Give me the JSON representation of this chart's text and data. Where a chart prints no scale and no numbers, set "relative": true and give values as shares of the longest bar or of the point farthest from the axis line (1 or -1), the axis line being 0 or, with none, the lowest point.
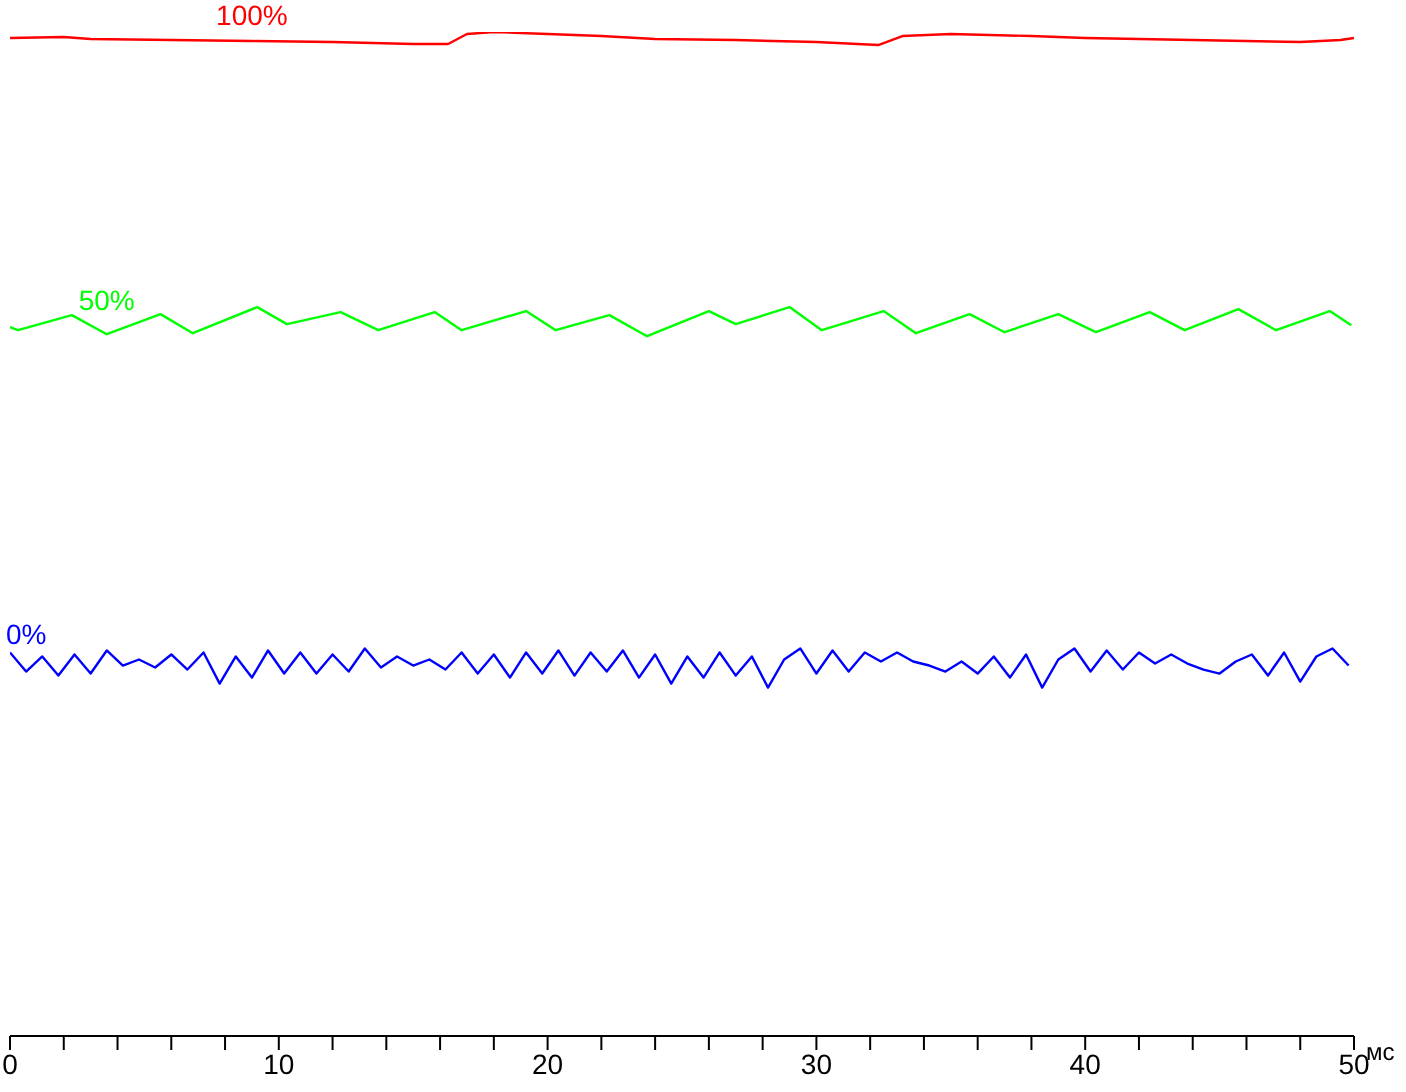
{
  "chart_data": {
    "type": "line",
    "relative": true,
    "xlabel": "мс",
    "xlim": [
      0,
      50
    ],
    "xticks": [
      0,
      {
        "value": 2,
        "label": null
      },
      {
        "value": 4,
        "label": null
      },
      {
        "value": 6,
        "label": null
      },
      {
        "value": 8,
        "label": null
      },
      10,
      {
        "value": 12,
        "label": null
      },
      {
        "value": 14,
        "label": null
      },
      {
        "value": 16,
        "label": null
      },
      {
        "value": 18,
        "label": null
      },
      20,
      {
        "value": 22,
        "label": null
      },
      {
        "value": 24,
        "label": null
      },
      {
        "value": 26,
        "label": null
      },
      {
        "value": 28,
        "label": null
      },
      30,
      {
        "value": 32,
        "label": null
      },
      {
        "value": 34,
        "label": null
      },
      {
        "value": 36,
        "label": null
      },
      {
        "value": 38,
        "label": null
      },
      40,
      {
        "value": 42,
        "label": null
      },
      {
        "value": 44,
        "label": null
      },
      {
        "value": 46,
        "label": null
      },
      {
        "value": 48,
        "label": null
      },
      50
    ],
    "marker": "none",
    "line_style": "solid",
    "series": [
      {
        "name": "100%",
        "color": "#ff0000",
        "x": [
          0,
          2,
          3,
          6,
          9,
          12,
          15,
          16.3,
          17,
          18,
          20,
          22,
          24,
          27,
          30,
          32.3,
          33.2,
          35,
          38,
          40,
          44,
          48,
          49.5,
          50
        ],
        "values": [
          0.994,
          0.995,
          0.993,
          0.992,
          0.991,
          0.99,
          0.988,
          0.988,
          0.998,
          1,
          0.998,
          0.996,
          0.993,
          0.992,
          0.99,
          0.987,
          0.996,
          0.998,
          0.996,
          0.994,
          0.992,
          0.99,
          0.992,
          0.994
        ]
      },
      {
        "name": "50%",
        "color": "#00ff00",
        "x": [
          0,
          0.3,
          2.3,
          3.6,
          5.6,
          6.8,
          9.2,
          10.3,
          12.3,
          13.7,
          15.8,
          16.8,
          19.2,
          20.3,
          22.3,
          23.7,
          26,
          27,
          29,
          30.2,
          32.5,
          33.7,
          35.7,
          37,
          39,
          40.4,
          42.4,
          43.7,
          45.7,
          47.1,
          49.1,
          49.9
        ],
        "values": [
          0.706,
          0.703,
          0.718,
          0.699,
          0.719,
          0.7,
          0.726,
          0.709,
          0.721,
          0.703,
          0.721,
          0.703,
          0.722,
          0.703,
          0.718,
          0.697,
          0.722,
          0.709,
          0.726,
          0.703,
          0.722,
          0.7,
          0.719,
          0.701,
          0.719,
          0.701,
          0.721,
          0.703,
          0.724,
          0.703,
          0.722,
          0.708
        ]
      },
      {
        "name": "0%",
        "color": "#0000ff",
        "x": [
          0,
          0.6,
          1.2,
          1.8,
          2.4,
          3,
          3.6,
          4.2,
          4.8,
          5.4,
          6,
          6.6,
          7.2,
          7.8,
          8.4,
          9,
          9.6,
          10.2,
          10.8,
          11.4,
          12,
          12.6,
          13.2,
          13.8,
          14.4,
          15,
          15.6,
          16.2,
          16.8,
          17.4,
          18,
          18.6,
          19.2,
          19.8,
          20.4,
          21,
          21.6,
          22.2,
          22.8,
          23.4,
          24,
          24.6,
          25.2,
          25.8,
          26.4,
          27,
          27.6,
          28.2,
          28.8,
          29.4,
          30,
          30.6,
          31.2,
          31.8,
          32.4,
          33,
          33.6,
          34.2,
          34.8,
          35.4,
          36,
          36.6,
          37.2,
          37.8,
          38.4,
          39,
          39.6,
          40.2,
          40.8,
          41.4,
          42,
          42.6,
          43.2,
          43.8,
          44.4,
          45,
          45.6,
          46.2,
          46.8,
          47.4,
          48,
          48.6,
          49.2,
          49.8
        ],
        "values": [
          0.382,
          0.363,
          0.378,
          0.359,
          0.38,
          0.361,
          0.384,
          0.369,
          0.375,
          0.367,
          0.38,
          0.365,
          0.382,
          0.351,
          0.378,
          0.357,
          0.384,
          0.361,
          0.382,
          0.361,
          0.38,
          0.363,
          0.386,
          0.367,
          0.378,
          0.369,
          0.375,
          0.365,
          0.382,
          0.361,
          0.38,
          0.357,
          0.382,
          0.361,
          0.384,
          0.359,
          0.382,
          0.363,
          0.384,
          0.357,
          0.38,
          0.351,
          0.378,
          0.357,
          0.382,
          0.359,
          0.378,
          0.347,
          0.375,
          0.386,
          0.361,
          0.384,
          0.363,
          0.382,
          0.373,
          0.382,
          0.373,
          0.369,
          0.363,
          0.373,
          0.361,
          0.378,
          0.357,
          0.38,
          0.347,
          0.375,
          0.386,
          0.363,
          0.384,
          0.365,
          0.382,
          0.371,
          0.38,
          0.371,
          0.365,
          0.361,
          0.373,
          0.38,
          0.359,
          0.382,
          0.353,
          0.378,
          0.386,
          0.369
        ]
      }
    ]
  }
}
